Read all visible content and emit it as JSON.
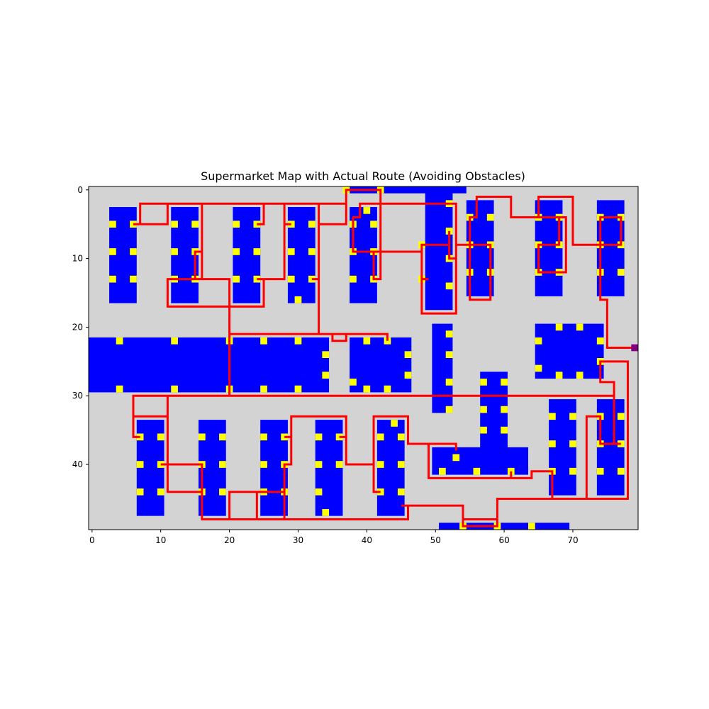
{
  "chart_data": {
    "type": "heatmap",
    "title": "Supermarket Map with Actual Route (Avoiding Obstacles)",
    "xlabel": "",
    "ylabel": "",
    "grid_cols": 80,
    "grid_rows": 50,
    "xlim": [
      -0.5,
      79.5
    ],
    "ylim": [
      49.5,
      -0.5
    ],
    "grid": false,
    "xticks": [
      0,
      10,
      20,
      30,
      40,
      50,
      60,
      70
    ],
    "yticks": [
      0,
      10,
      20,
      30,
      40
    ],
    "colors": {
      "floor": "#d3d3d3",
      "shelf": "#0000ff",
      "access_point": "#ffff00",
      "route": "#ff0000",
      "start": "#800080"
    },
    "shelves": [
      [
        3,
        3,
        6,
        16
      ],
      [
        12,
        3,
        15,
        16
      ],
      [
        21,
        3,
        24,
        16
      ],
      [
        29,
        3,
        32,
        16
      ],
      [
        38,
        0,
        54,
        0
      ],
      [
        38,
        3,
        41,
        16
      ],
      [
        49,
        0,
        52,
        17
      ],
      [
        55,
        2,
        58,
        15
      ],
      [
        65,
        2,
        68,
        15
      ],
      [
        74,
        2,
        77,
        15
      ],
      [
        0,
        22,
        34,
        29
      ],
      [
        38,
        22,
        46,
        29
      ],
      [
        50,
        20,
        52,
        32
      ],
      [
        57,
        27,
        60,
        38
      ],
      [
        50,
        38,
        63,
        41
      ],
      [
        65,
        20,
        74,
        27
      ],
      [
        67,
        31,
        70,
        44
      ],
      [
        74,
        31,
        77,
        44
      ],
      [
        7,
        34,
        10,
        47
      ],
      [
        16,
        34,
        19,
        47
      ],
      [
        25,
        34,
        28,
        47
      ],
      [
        33,
        34,
        36,
        47
      ],
      [
        42,
        34,
        45,
        47
      ],
      [
        51,
        49,
        69,
        49
      ]
    ],
    "access_points": [
      [
        3,
        5
      ],
      [
        6,
        5
      ],
      [
        3,
        9
      ],
      [
        6,
        9
      ],
      [
        3,
        13
      ],
      [
        6,
        13
      ],
      [
        12,
        5
      ],
      [
        15,
        5
      ],
      [
        12,
        9
      ],
      [
        15,
        9
      ],
      [
        12,
        13
      ],
      [
        15,
        13
      ],
      [
        21,
        5
      ],
      [
        24,
        5
      ],
      [
        21,
        9
      ],
      [
        24,
        9
      ],
      [
        21,
        13
      ],
      [
        24,
        13
      ],
      [
        29,
        5
      ],
      [
        32,
        5
      ],
      [
        29,
        9
      ],
      [
        32,
        9
      ],
      [
        29,
        13
      ],
      [
        32,
        13
      ],
      [
        30,
        16
      ],
      [
        37,
        0
      ],
      [
        42,
        0
      ],
      [
        40,
        3
      ],
      [
        38,
        5
      ],
      [
        41,
        5
      ],
      [
        38,
        9
      ],
      [
        41,
        9
      ],
      [
        38,
        13
      ],
      [
        41,
        13
      ],
      [
        52,
        2
      ],
      [
        52,
        6
      ],
      [
        52,
        10
      ],
      [
        52,
        14
      ],
      [
        48,
        8
      ],
      [
        48,
        13
      ],
      [
        55,
        4
      ],
      [
        58,
        4
      ],
      [
        55,
        8
      ],
      [
        58,
        8
      ],
      [
        55,
        12
      ],
      [
        58,
        12
      ],
      [
        65,
        4
      ],
      [
        68,
        4
      ],
      [
        65,
        8
      ],
      [
        68,
        8
      ],
      [
        65,
        12
      ],
      [
        68,
        12
      ],
      [
        74,
        4
      ],
      [
        77,
        4
      ],
      [
        74,
        8
      ],
      [
        77,
        8
      ],
      [
        74,
        12
      ],
      [
        77,
        12
      ],
      [
        4,
        22
      ],
      [
        12,
        22
      ],
      [
        20,
        22
      ],
      [
        25,
        22
      ],
      [
        30,
        22
      ],
      [
        34,
        24
      ],
      [
        34,
        27
      ],
      [
        4,
        29
      ],
      [
        12,
        29
      ],
      [
        20,
        29
      ],
      [
        25,
        29
      ],
      [
        30,
        29
      ],
      [
        40,
        22
      ],
      [
        43,
        22
      ],
      [
        46,
        24
      ],
      [
        46,
        27
      ],
      [
        38,
        28
      ],
      [
        40,
        29
      ],
      [
        43,
        29
      ],
      [
        52,
        21
      ],
      [
        52,
        24
      ],
      [
        52,
        28
      ],
      [
        52,
        32
      ],
      [
        57,
        28
      ],
      [
        60,
        28
      ],
      [
        57,
        32
      ],
      [
        60,
        32
      ],
      [
        57,
        35
      ],
      [
        60,
        35
      ],
      [
        53,
        39
      ],
      [
        51,
        41
      ],
      [
        56,
        41
      ],
      [
        61,
        41
      ],
      [
        65,
        22
      ],
      [
        68,
        20
      ],
      [
        71,
        20
      ],
      [
        74,
        22
      ],
      [
        65,
        26
      ],
      [
        68,
        27
      ],
      [
        71,
        27
      ],
      [
        74,
        25
      ],
      [
        67,
        33
      ],
      [
        70,
        33
      ],
      [
        67,
        37
      ],
      [
        70,
        37
      ],
      [
        67,
        41
      ],
      [
        70,
        41
      ],
      [
        74,
        33
      ],
      [
        77,
        33
      ],
      [
        74,
        37
      ],
      [
        77,
        37
      ],
      [
        74,
        41
      ],
      [
        77,
        41
      ],
      [
        7,
        36
      ],
      [
        10,
        36
      ],
      [
        7,
        40
      ],
      [
        10,
        40
      ],
      [
        7,
        44
      ],
      [
        10,
        44
      ],
      [
        16,
        36
      ],
      [
        19,
        36
      ],
      [
        16,
        40
      ],
      [
        19,
        40
      ],
      [
        16,
        44
      ],
      [
        19,
        44
      ],
      [
        25,
        36
      ],
      [
        28,
        36
      ],
      [
        25,
        40
      ],
      [
        28,
        40
      ],
      [
        25,
        44
      ],
      [
        28,
        44
      ],
      [
        33,
        36
      ],
      [
        36,
        36
      ],
      [
        33,
        40
      ],
      [
        36,
        40
      ],
      [
        33,
        44
      ],
      [
        34,
        47
      ],
      [
        42,
        36
      ],
      [
        45,
        36
      ],
      [
        42,
        40
      ],
      [
        45,
        40
      ],
      [
        42,
        44
      ],
      [
        45,
        44
      ],
      [
        44,
        34
      ],
      [
        54,
        49
      ],
      [
        59,
        49
      ],
      [
        64,
        49
      ]
    ],
    "start": [
      79,
      23
    ],
    "route": [
      [
        79,
        23
      ],
      [
        75,
        23
      ],
      [
        75,
        16
      ],
      [
        74,
        16
      ],
      [
        74,
        8
      ],
      [
        77,
        8
      ],
      [
        74,
        8
      ],
      [
        74,
        4
      ],
      [
        77,
        4
      ],
      [
        77,
        8
      ],
      [
        70,
        8
      ],
      [
        70,
        1
      ],
      [
        65,
        1
      ],
      [
        65,
        4
      ],
      [
        68,
        4
      ],
      [
        68,
        8
      ],
      [
        65,
        8
      ],
      [
        65,
        12
      ],
      [
        68,
        12
      ],
      [
        69,
        12
      ],
      [
        69,
        4
      ],
      [
        61,
        4
      ],
      [
        61,
        1
      ],
      [
        56,
        1
      ],
      [
        56,
        4
      ],
      [
        55,
        4
      ],
      [
        55,
        16
      ],
      [
        58,
        16
      ],
      [
        58,
        8
      ],
      [
        55,
        8
      ],
      [
        53,
        8
      ],
      [
        53,
        18
      ],
      [
        48,
        18
      ],
      [
        48,
        8
      ],
      [
        52,
        8
      ],
      [
        52,
        6
      ],
      [
        52,
        10
      ],
      [
        53,
        10
      ],
      [
        53,
        2
      ],
      [
        42,
        2
      ],
      [
        42,
        13
      ],
      [
        41,
        13
      ],
      [
        41,
        9
      ],
      [
        43,
        9
      ],
      [
        48,
        9
      ],
      [
        48,
        13
      ],
      [
        49,
        13
      ],
      [
        48,
        13
      ],
      [
        48,
        9
      ],
      [
        43,
        9
      ],
      [
        42,
        9
      ],
      [
        38,
        9
      ],
      [
        38,
        4
      ],
      [
        39,
        4
      ],
      [
        39,
        2
      ],
      [
        42,
        2
      ],
      [
        42,
        0
      ],
      [
        37,
        0
      ],
      [
        37,
        2
      ],
      [
        7,
        2
      ],
      [
        7,
        5
      ],
      [
        6,
        5
      ],
      [
        11,
        5
      ],
      [
        11,
        2
      ],
      [
        16,
        2
      ],
      [
        16,
        13
      ],
      [
        12,
        13
      ],
      [
        11,
        13
      ],
      [
        11,
        17
      ],
      [
        25,
        17
      ],
      [
        25,
        13
      ],
      [
        24,
        13
      ],
      [
        28,
        13
      ],
      [
        28,
        5
      ],
      [
        29,
        5
      ],
      [
        28,
        5
      ],
      [
        28,
        2
      ],
      [
        25,
        2
      ],
      [
        25,
        5
      ],
      [
        24,
        5
      ],
      [
        25,
        5
      ],
      [
        25,
        2
      ],
      [
        33,
        2
      ],
      [
        33,
        5
      ],
      [
        37,
        5
      ],
      [
        37,
        2
      ],
      [
        33,
        2
      ],
      [
        33,
        13
      ],
      [
        32,
        13
      ],
      [
        33,
        13
      ],
      [
        33,
        21
      ],
      [
        35,
        21
      ],
      [
        35,
        22
      ],
      [
        37,
        22
      ],
      [
        37,
        21
      ],
      [
        43,
        21
      ],
      [
        43,
        22
      ],
      [
        43,
        21
      ],
      [
        20,
        21
      ],
      [
        20,
        13
      ],
      [
        15,
        13
      ],
      [
        15,
        9
      ],
      [
        16,
        9
      ],
      [
        16,
        13
      ],
      [
        20,
        13
      ],
      [
        20,
        30
      ],
      [
        11,
        30
      ],
      [
        6,
        30
      ],
      [
        6,
        36
      ],
      [
        7,
        36
      ],
      [
        6,
        36
      ],
      [
        6,
        33
      ],
      [
        11,
        33
      ],
      [
        11,
        40
      ],
      [
        10,
        40
      ],
      [
        16,
        40
      ],
      [
        16,
        48
      ],
      [
        28,
        48
      ],
      [
        28,
        40
      ],
      [
        29,
        40
      ],
      [
        29,
        36
      ],
      [
        28,
        36
      ],
      [
        29,
        36
      ],
      [
        29,
        33
      ],
      [
        37,
        33
      ],
      [
        37,
        36
      ],
      [
        36,
        36
      ],
      [
        37,
        36
      ],
      [
        37,
        40
      ],
      [
        41,
        40
      ],
      [
        41,
        44
      ],
      [
        42,
        44
      ],
      [
        41,
        44
      ],
      [
        41,
        33
      ],
      [
        46,
        33
      ],
      [
        46,
        37
      ],
      [
        53,
        37
      ],
      [
        53,
        38
      ],
      [
        53,
        37
      ],
      [
        49,
        37
      ],
      [
        49,
        42
      ],
      [
        61,
        42
      ],
      [
        61,
        41
      ],
      [
        61,
        42
      ],
      [
        64,
        42
      ],
      [
        64,
        41
      ],
      [
        67,
        41
      ],
      [
        67,
        45
      ],
      [
        72,
        45
      ],
      [
        72,
        33
      ],
      [
        74,
        33
      ],
      [
        74,
        37
      ],
      [
        77,
        37
      ],
      [
        76,
        37
      ],
      [
        76,
        28
      ],
      [
        74,
        28
      ],
      [
        74,
        25
      ],
      [
        78,
        25
      ],
      [
        78,
        45
      ],
      [
        59,
        45
      ],
      [
        59,
        49
      ],
      [
        54,
        49
      ],
      [
        54,
        48
      ],
      [
        59,
        48
      ],
      [
        59,
        49
      ],
      [
        54,
        49
      ],
      [
        54,
        46
      ],
      [
        45,
        46
      ],
      [
        46,
        46
      ],
      [
        46,
        48
      ],
      [
        24,
        48
      ],
      [
        24,
        44
      ],
      [
        28,
        44
      ],
      [
        24,
        44
      ],
      [
        20,
        44
      ],
      [
        20,
        48
      ],
      [
        16,
        48
      ],
      [
        16,
        44
      ],
      [
        11,
        44
      ],
      [
        11,
        30
      ],
      [
        34,
        30
      ],
      [
        76,
        30
      ],
      [
        76,
        31
      ]
    ]
  }
}
